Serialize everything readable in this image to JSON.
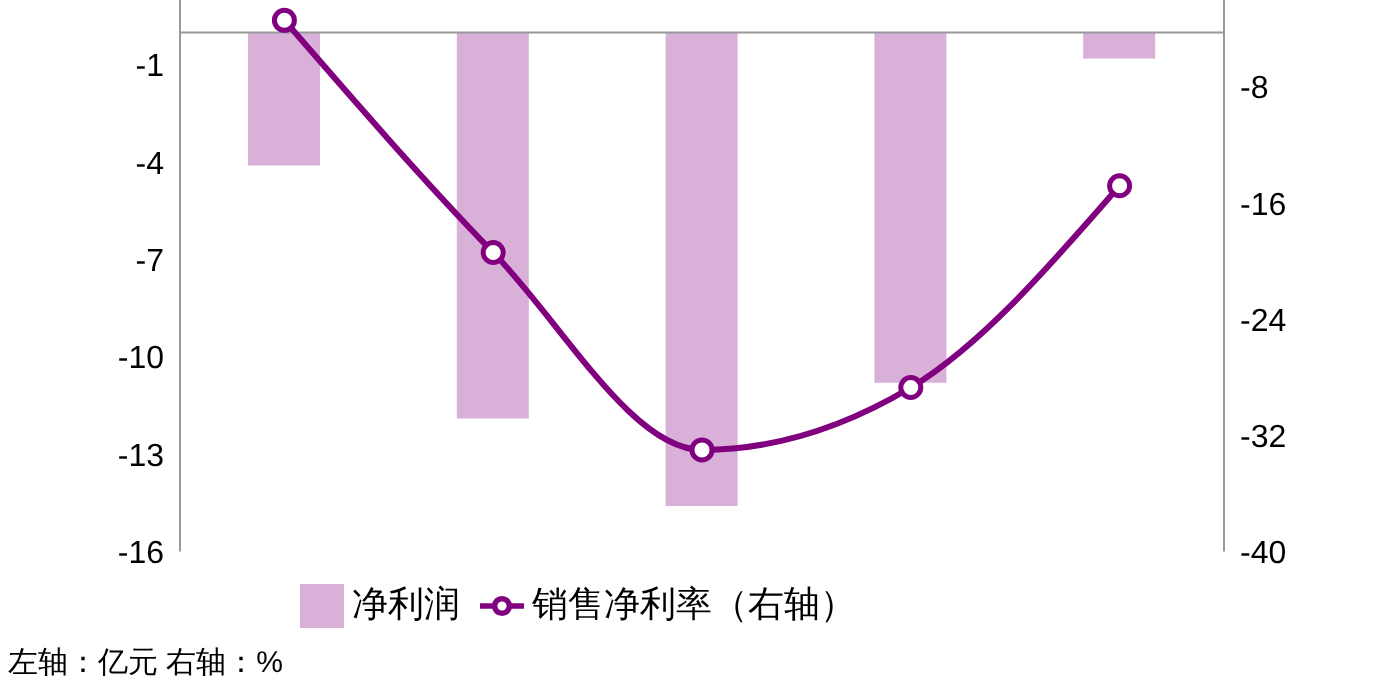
{
  "chart_data": {
    "type": "bar",
    "categories": [
      null,
      null,
      null,
      null,
      null
    ],
    "series": [
      {
        "name": "净利润",
        "color": "#d8b0d8",
        "values": [
          -4.1,
          -11.9,
          -14.6,
          -10.8,
          -0.8
        ]
      },
      {
        "name": "销售净利率（右轴）",
        "type": "line",
        "axis": "y2",
        "color": "#800080",
        "values": [
          -3.4,
          -19.4,
          -33.0,
          -28.7,
          -14.8
        ]
      }
    ],
    "ylim": [
      -16,
      1
    ],
    "yticks": [
      -16,
      -13,
      -10,
      -7,
      -4,
      -1
    ],
    "y2lim": [
      -40,
      -2
    ],
    "y2ticks": [
      -40,
      -32,
      -24,
      -16,
      -8
    ],
    "tick_labels": "y",
    "grid": false,
    "legend": "bottom",
    "marker": "circle",
    "line_style": "solid",
    "annotations": [
      "左轴：亿元 右轴：%"
    ]
  }
}
